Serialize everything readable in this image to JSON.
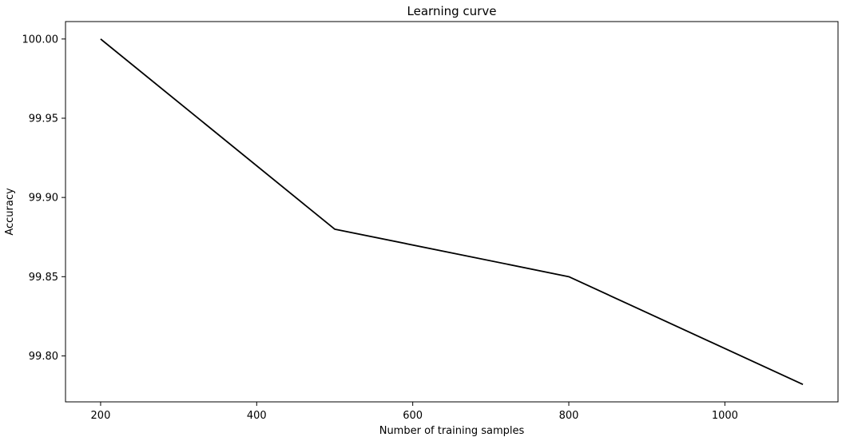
{
  "chart_data": {
    "type": "line",
    "title": "Learning curve",
    "xlabel": "Number of training samples",
    "ylabel": "Accuracy",
    "xlim": [
      155,
      1145
    ],
    "ylim": [
      99.771,
      100.011
    ],
    "xticks": [
      200,
      400,
      600,
      800,
      1000
    ],
    "yticks": [
      99.8,
      99.85,
      99.9,
      99.95,
      100.0
    ],
    "ytick_labels": [
      "99.80",
      "99.85",
      "99.90",
      "99.95",
      "100.00"
    ],
    "grid": false,
    "series": [
      {
        "x": [
          200,
          500,
          800,
          1100
        ],
        "y": [
          100.0,
          99.88,
          99.85,
          99.782
        ],
        "color": "#000000"
      }
    ]
  }
}
